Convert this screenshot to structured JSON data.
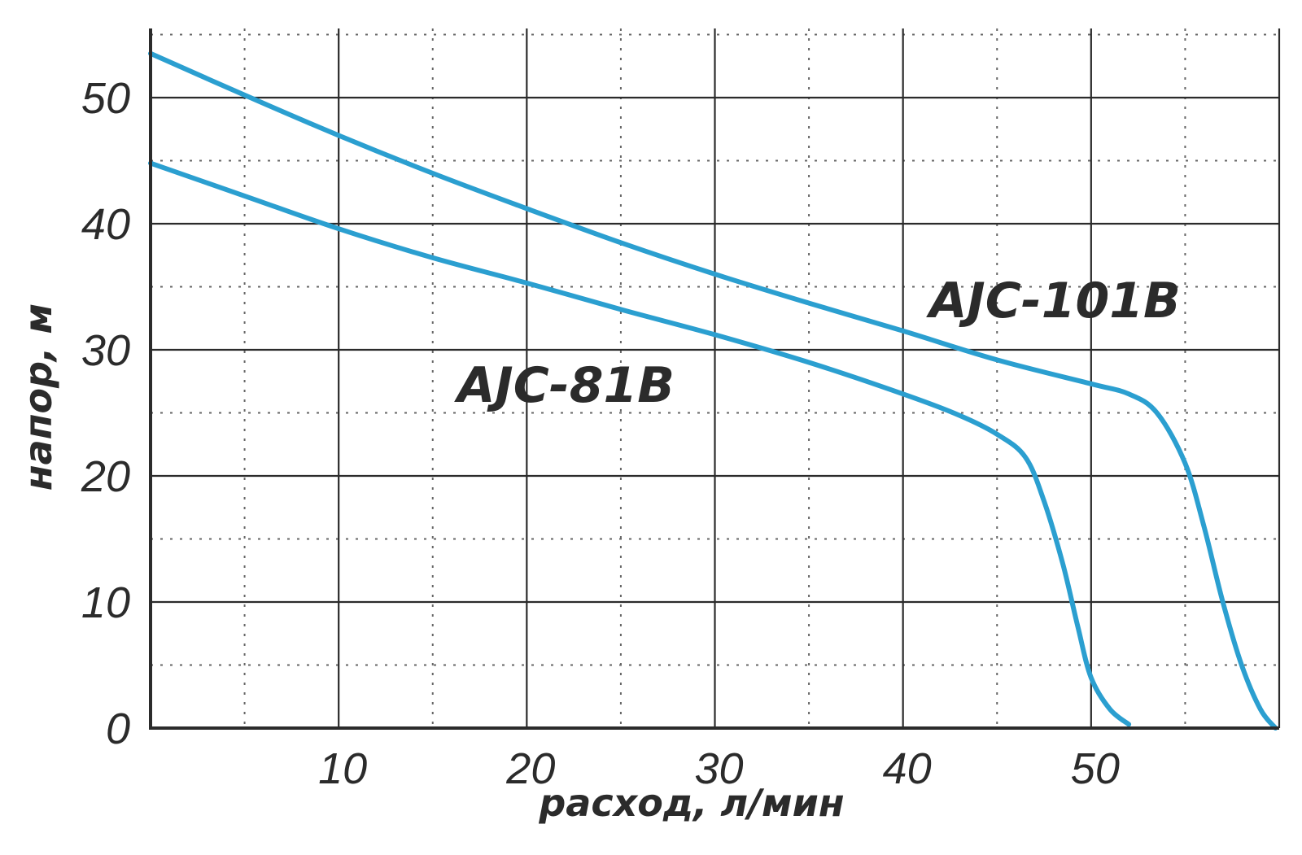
{
  "chart_data": {
    "type": "line",
    "xlabel": "расход, л/мин",
    "ylabel": "напор, м",
    "xlim": [
      0,
      60
    ],
    "ylim": [
      0,
      55
    ],
    "x_ticks": [
      10,
      20,
      30,
      40,
      50
    ],
    "y_ticks": [
      0,
      10,
      20,
      30,
      40,
      50
    ],
    "x_minor_step": 5,
    "y_minor_step": 5,
    "grid": true,
    "line_color": "#2b9fd0",
    "series": [
      {
        "name": "AJC-101B",
        "points": [
          [
            0,
            53.5
          ],
          [
            5,
            50.2
          ],
          [
            10,
            47
          ],
          [
            15,
            44
          ],
          [
            20,
            41.2
          ],
          [
            25,
            38.5
          ],
          [
            30,
            36
          ],
          [
            35,
            33.7
          ],
          [
            40,
            31.5
          ],
          [
            45,
            29.2
          ],
          [
            50,
            27.3
          ],
          [
            52,
            26.5
          ],
          [
            53.5,
            25
          ],
          [
            55,
            21
          ],
          [
            56,
            16
          ],
          [
            57,
            10
          ],
          [
            58,
            5
          ],
          [
            59,
            1.5
          ],
          [
            59.8,
            0
          ]
        ]
      },
      {
        "name": "AJC-81B",
        "points": [
          [
            0,
            44.8
          ],
          [
            5,
            42.2
          ],
          [
            10,
            39.6
          ],
          [
            15,
            37.3
          ],
          [
            20,
            35.3
          ],
          [
            25,
            33.2
          ],
          [
            30,
            31.2
          ],
          [
            35,
            29
          ],
          [
            40,
            26.5
          ],
          [
            43,
            24.8
          ],
          [
            45,
            23.3
          ],
          [
            46.5,
            21.5
          ],
          [
            47.5,
            18
          ],
          [
            48.5,
            13
          ],
          [
            49.3,
            8
          ],
          [
            50,
            4
          ],
          [
            51,
            1.5
          ],
          [
            52,
            0.3
          ]
        ]
      }
    ]
  }
}
